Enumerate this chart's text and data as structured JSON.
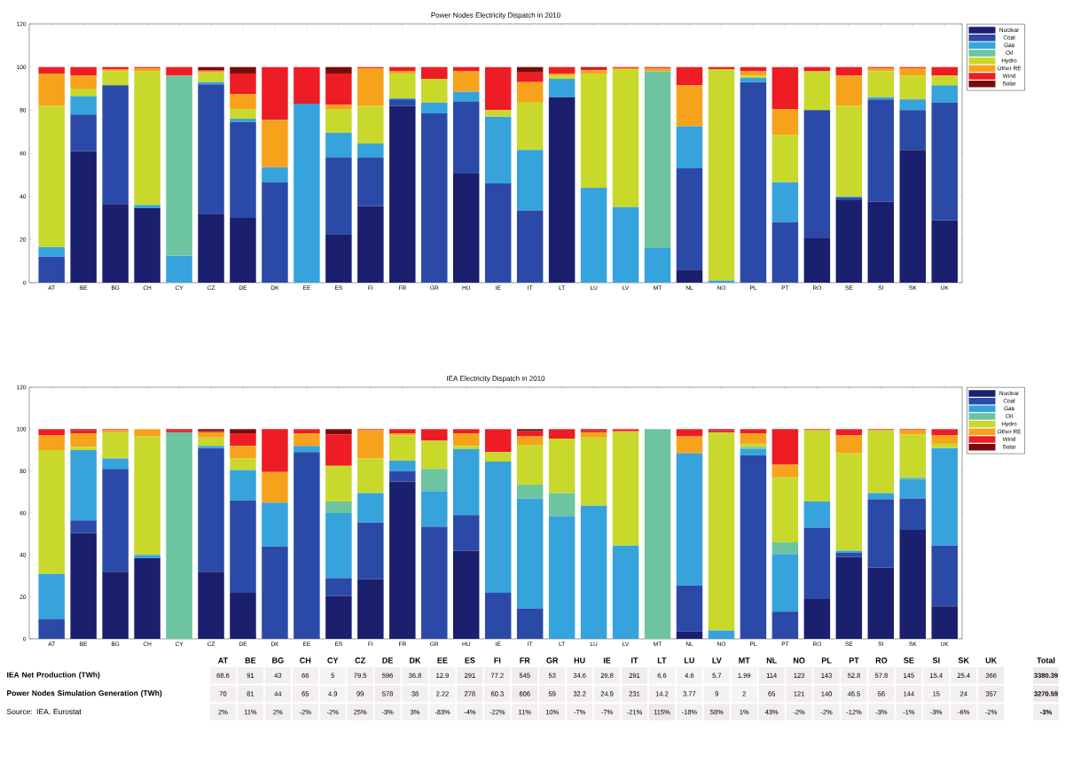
{
  "chart_data": [
    {
      "type": "bar",
      "stacked": true,
      "title": "Power Nodes Electricity Dispatch in 2010",
      "legend": "top right",
      "ylim": [
        0,
        120
      ],
      "yticks": [
        0,
        20,
        40,
        60,
        80,
        100,
        120
      ],
      "categories": [
        "AT",
        "BE",
        "BG",
        "CH",
        "CY",
        "CZ",
        "DE",
        "DK",
        "EE",
        "ES",
        "FI",
        "FR",
        "GR",
        "HU",
        "IE",
        "IT",
        "LT",
        "LU",
        "LV",
        "MT",
        "NL",
        "NO",
        "PL",
        "PT",
        "RO",
        "SE",
        "SI",
        "SK",
        "UK"
      ],
      "series": [
        {
          "name": "Nuclear",
          "color": "#1a1f6e",
          "values": [
            0,
            61,
            36.5,
            34.5,
            0,
            32,
            30,
            0,
            0,
            22.5,
            35.5,
            82,
            0,
            50.5,
            0,
            0,
            86,
            0,
            0,
            0,
            6,
            0,
            0,
            0,
            20.5,
            38.5,
            37.5,
            61.5,
            29
          ]
        },
        {
          "name": "Coal",
          "color": "#2b4aa8",
          "values": [
            12,
            17,
            55,
            0,
            0,
            60,
            44.5,
            46.5,
            0,
            35.5,
            22.5,
            3,
            78.5,
            33.5,
            46,
            33.5,
            0,
            0,
            0,
            0,
            47,
            0,
            93,
            28,
            59.5,
            1,
            47.5,
            18.5,
            54.5
          ]
        },
        {
          "name": "Gas",
          "color": "#36a3dc",
          "values": [
            4.5,
            8.5,
            0,
            1.5,
            12.5,
            1,
            1.5,
            7,
            83,
            11.5,
            6.5,
            0.5,
            5,
            4.5,
            31,
            28,
            8.5,
            44,
            35,
            16,
            19.5,
            1,
            2,
            18.5,
            0,
            0.5,
            1,
            5,
            8
          ]
        },
        {
          "name": "Oil",
          "color": "#6cc4a0",
          "values": [
            0,
            0,
            0,
            0,
            83.5,
            0,
            0,
            0,
            0,
            0,
            0,
            0,
            0,
            0,
            0,
            0,
            0,
            0,
            0,
            82,
            0,
            0,
            0,
            0,
            0,
            0,
            0,
            0,
            0
          ]
        },
        {
          "name": "Hydro",
          "color": "#c8d92b",
          "values": [
            65.5,
            3.5,
            6.5,
            62,
            0,
            4.5,
            4.5,
            0,
            0,
            11,
            17.5,
            11.5,
            11,
            0,
            3,
            22,
            1.5,
            53,
            64,
            0,
            0,
            98,
            1,
            22,
            18,
            42,
            12,
            11,
            4.5
          ]
        },
        {
          "name": "Other RE",
          "color": "#f7a21b",
          "values": [
            15,
            6,
            1,
            1.5,
            0,
            0.5,
            7,
            22,
            0,
            2,
            17.5,
            1,
            0,
            9.5,
            0,
            9.5,
            1,
            1.5,
            0.5,
            1.5,
            19,
            0,
            2,
            12,
            0,
            14,
            1.5,
            3.5,
            0
          ]
        },
        {
          "name": "Wind",
          "color": "#ee1c24",
          "values": [
            3,
            4,
            1,
            0.5,
            4,
            0.5,
            9.5,
            24.5,
            17,
            14.5,
            0.5,
            2,
            5.5,
            2,
            20,
            4.5,
            3,
            1,
            0.5,
            0.5,
            8.5,
            1,
            2,
            19.5,
            2,
            4,
            0.5,
            0.5,
            4
          ]
        },
        {
          "name": "Solar",
          "color": "#7a0a0a",
          "values": [
            0,
            0,
            0,
            0,
            0,
            1.5,
            3,
            0,
            0,
            3,
            0,
            0,
            0,
            0,
            0,
            2.5,
            0,
            0.5,
            0,
            0,
            0,
            0,
            0,
            0,
            0,
            0,
            0,
            0,
            0
          ]
        }
      ]
    },
    {
      "type": "bar",
      "stacked": true,
      "title": "IEA Electricity Dispatch in 2010",
      "legend": "top right",
      "ylim": [
        0,
        120
      ],
      "yticks": [
        0,
        20,
        40,
        60,
        80,
        100,
        120
      ],
      "categories": [
        "AT",
        "BE",
        "BG",
        "CH",
        "CY",
        "CZ",
        "DE",
        "DK",
        "EE",
        "ES",
        "FI",
        "FR",
        "GR",
        "HU",
        "IE",
        "IT",
        "LT",
        "LU",
        "LV",
        "MT",
        "NL",
        "NO",
        "PL",
        "PT",
        "RO",
        "SE",
        "SI",
        "SK",
        "UK"
      ],
      "series": [
        {
          "name": "Nuclear",
          "color": "#1a1f6e",
          "values": [
            0,
            50.5,
            32,
            38.5,
            0,
            32,
            22,
            0,
            0,
            20.5,
            28.5,
            75,
            0,
            42,
            0,
            0,
            0,
            0,
            0,
            0,
            3.5,
            0,
            0,
            0,
            19,
            39,
            34,
            52,
            15.5
          ]
        },
        {
          "name": "Coal",
          "color": "#2b4aa8",
          "values": [
            9.5,
            6,
            49,
            0,
            0,
            59,
            44,
            44,
            89,
            8.5,
            27,
            5,
            53.5,
            17,
            22,
            14.5,
            0,
            0,
            0,
            0,
            22,
            0,
            87.5,
            13,
            34,
            2,
            32.5,
            15,
            29
          ]
        },
        {
          "name": "Gas",
          "color": "#36a3dc",
          "values": [
            21.5,
            33.5,
            5,
            1.5,
            0,
            1,
            14.5,
            21,
            3,
            31,
            14,
            5,
            17,
            31.5,
            62.5,
            52.5,
            58.5,
            63.5,
            44.5,
            0,
            63,
            4,
            3,
            27.5,
            12.5,
            1,
            3,
            9,
            46.5
          ]
        },
        {
          "name": "Oil",
          "color": "#6cc4a0",
          "values": [
            0,
            0,
            0,
            0,
            98.5,
            0,
            0,
            0,
            0,
            5.5,
            0,
            0,
            10.5,
            0,
            0,
            6.5,
            11,
            0,
            0,
            100,
            0,
            0,
            1,
            5.5,
            0,
            0,
            0,
            1,
            0
          ]
        },
        {
          "name": "Hydro",
          "color": "#c8d92b",
          "values": [
            59,
            1.5,
            12.5,
            56.5,
            0,
            4,
            5.5,
            0,
            0,
            17,
            16.5,
            12,
            13.5,
            1.5,
            4.5,
            19,
            26,
            32.5,
            54,
            0,
            0,
            94.5,
            1.5,
            31,
            34,
            46.5,
            30,
            20.5,
            2
          ]
        },
        {
          "name": "Other RE",
          "color": "#f7a21b",
          "values": [
            7,
            6.5,
            1,
            3.5,
            0,
            2.5,
            6,
            14.5,
            6,
            0,
            13.5,
            1,
            0,
            6,
            0,
            4,
            0,
            2.5,
            0.5,
            0,
            8,
            0,
            5,
            6,
            0,
            8.5,
            0,
            2,
            4
          ]
        },
        {
          "name": "Wind",
          "color": "#ee1c24",
          "values": [
            3,
            1.5,
            0.5,
            0,
            1,
            0.5,
            6,
            20.5,
            2,
            15,
            0.5,
            2,
            5.5,
            2,
            11,
            2.5,
            4.5,
            1,
            1,
            0,
            3.5,
            1,
            2,
            17,
            0.5,
            3,
            0.5,
            0.5,
            3
          ]
        },
        {
          "name": "Solar",
          "color": "#7a0a0a",
          "values": [
            0,
            0.5,
            0,
            0,
            0.5,
            1,
            2,
            0,
            0,
            2.5,
            0,
            0,
            0,
            0,
            0,
            1,
            0,
            0.5,
            0,
            0,
            0,
            0.5,
            0,
            0,
            0,
            0,
            0,
            0,
            0
          ]
        }
      ]
    },
    {
      "type": "heatmap",
      "categories": [
        "AT",
        "BE",
        "BG",
        "CH",
        "CY",
        "CZ",
        "DE",
        "DK",
        "EE",
        "ES",
        "FI",
        "FR",
        "GR",
        "HU",
        "IE",
        "IT",
        "LT",
        "LU",
        "LV",
        "MT",
        "NL",
        "NO",
        "PL",
        "PT",
        "RO",
        "SE",
        "SI",
        "SK",
        "UK",
        null,
        "Total"
      ],
      "y_categories": [
        "IEA Net Production (TWh)",
        "Power Nodes Simulation Generation (TWh)",
        "Source: IEA, Eurostat"
      ],
      "cells": [
        [
          68.6,
          91,
          43,
          66,
          5,
          79.5,
          596,
          36.8,
          12.9,
          291,
          77.2,
          545,
          53,
          34.6,
          26.8,
          291,
          6.6,
          4.6,
          5.7,
          1.99,
          114,
          123,
          143,
          52.8,
          57.8,
          145,
          15.4,
          25.4,
          366,
          null,
          3380.39
        ],
        [
          70,
          81,
          44,
          65,
          4.9,
          99,
          578,
          38,
          2.22,
          278,
          60.3,
          606,
          59,
          32.2,
          24.9,
          231,
          14.2,
          3.77,
          9,
          2,
          65,
          121,
          140,
          46.5,
          56,
          144,
          15,
          24,
          357,
          null,
          3270.59
        ],
        [
          2,
          11,
          2,
          -2,
          -2,
          25,
          -3,
          3,
          -83,
          -4,
          -22,
          11,
          10,
          -7,
          -7,
          -21,
          115,
          -18,
          58,
          1,
          43,
          -2,
          -2,
          -12,
          -3,
          -1,
          -3,
          -6,
          -2,
          null,
          -3
        ]
      ],
      "cell_labels": [
        [
          "68.6",
          "91",
          "43",
          "66",
          "5",
          "79.5",
          "596",
          "36.8",
          "12.9",
          "291",
          "77.2",
          "545",
          "53",
          "34.6",
          "26.8",
          "291",
          "6.6",
          "4.6",
          "5.7",
          "1.99",
          "114",
          "123",
          "143",
          "52.8",
          "57.8",
          "145",
          "15.4",
          "25.4",
          "366",
          null,
          "3380.39"
        ],
        [
          "70",
          "81",
          "44",
          "65",
          "4.9",
          "99",
          "578",
          "38",
          "2.22",
          "278",
          "60.3",
          "606",
          "59",
          "32.2",
          "24.9",
          "231",
          "14.2",
          "3.77",
          "9",
          "2",
          "65",
          "121",
          "140",
          "46.5",
          "56",
          "144",
          "15",
          "24",
          "357",
          null,
          "3270.59"
        ],
        [
          "2%",
          "11%",
          "2%",
          "-2%",
          "-2%",
          "25%",
          "-3%",
          "3%",
          "-83%",
          "-4%",
          "-22%",
          "11%",
          "10%",
          "-7%",
          "-7%",
          "-21%",
          "115%",
          "-18%",
          "58%",
          "1%",
          "43%",
          "-2%",
          "-2%",
          "-12%",
          "-3%",
          "-1%",
          "-3%",
          "-6%",
          "-2%",
          null,
          "-3%"
        ]
      ]
    }
  ]
}
